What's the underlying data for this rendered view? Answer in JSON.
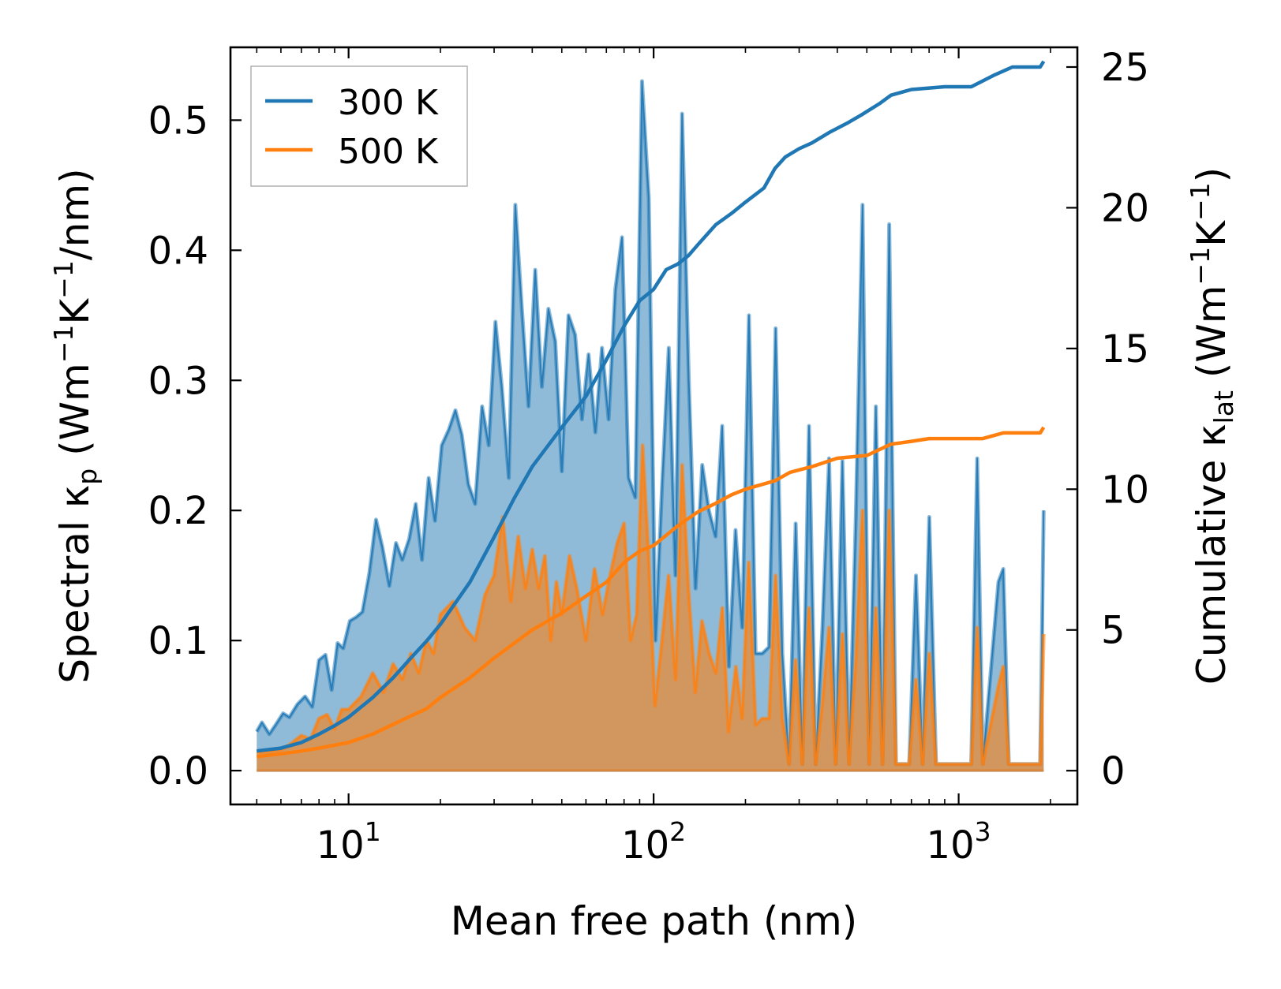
{
  "chart_data": {
    "type": "area",
    "xscale": "log",
    "xlabel": "Mean free path (nm)",
    "ylabel_left": {
      "main": "Spectral κ",
      "sub": "p",
      "unit_open": " (Wm",
      "sup1": "−1",
      "unit_mid": "K",
      "sup2": "−1",
      "unit_close": "/nm)"
    },
    "ylabel_right": {
      "main": "Cumulative κ",
      "sub": "lat",
      "unit_open": " (Wm",
      "sup1": "−1",
      "unit_mid": "K",
      "sup2": "−1",
      "unit_close": ")"
    },
    "xlim": [
      4.1,
      2450
    ],
    "ylim_left": [
      -0.026,
      0.556
    ],
    "ylim_right": [
      -1.2,
      25.7
    ],
    "x_ticks": [
      {
        "value": 10,
        "base": "10",
        "exp": "1"
      },
      {
        "value": 100,
        "base": "10",
        "exp": "2"
      },
      {
        "value": 1000,
        "base": "10",
        "exp": "3"
      }
    ],
    "y_left_ticks": [
      {
        "value": 0.0,
        "label": "0.0"
      },
      {
        "value": 0.1,
        "label": "0.1"
      },
      {
        "value": 0.2,
        "label": "0.2"
      },
      {
        "value": 0.3,
        "label": "0.3"
      },
      {
        "value": 0.4,
        "label": "0.4"
      },
      {
        "value": 0.5,
        "label": "0.5"
      }
    ],
    "y_right_ticks": [
      {
        "value": 0,
        "label": "0"
      },
      {
        "value": 5,
        "label": "5"
      },
      {
        "value": 10,
        "label": "10"
      },
      {
        "value": 15,
        "label": "15"
      },
      {
        "value": 20,
        "label": "20"
      },
      {
        "value": 25,
        "label": "25"
      }
    ],
    "legend": {
      "location": "top-left",
      "entries": [
        "300 K",
        "500 K"
      ]
    },
    "series": [
      {
        "name": "300 K",
        "color": "#1f77b4",
        "fill_color": "#1f77b4",
        "spectral": [
          [
            5.0,
            0.03
          ],
          [
            5.2,
            0.037
          ],
          [
            5.5,
            0.028
          ],
          [
            5.8,
            0.036
          ],
          [
            6.1,
            0.044
          ],
          [
            6.4,
            0.041
          ],
          [
            6.8,
            0.051
          ],
          [
            7.2,
            0.057
          ],
          [
            7.6,
            0.049
          ],
          [
            8.0,
            0.085
          ],
          [
            8.4,
            0.089
          ],
          [
            8.8,
            0.062
          ],
          [
            9.2,
            0.098
          ],
          [
            9.6,
            0.094
          ],
          [
            10.1,
            0.115
          ],
          [
            10.6,
            0.118
          ],
          [
            11.1,
            0.122
          ],
          [
            11.7,
            0.152
          ],
          [
            12.3,
            0.193
          ],
          [
            12.9,
            0.172
          ],
          [
            13.6,
            0.142
          ],
          [
            14.3,
            0.175
          ],
          [
            15.0,
            0.162
          ],
          [
            15.8,
            0.178
          ],
          [
            16.6,
            0.205
          ],
          [
            17.4,
            0.162
          ],
          [
            18.3,
            0.225
          ],
          [
            19.2,
            0.192
          ],
          [
            20.2,
            0.25
          ],
          [
            21.3,
            0.262
          ],
          [
            22.4,
            0.277
          ],
          [
            23.5,
            0.258
          ],
          [
            24.7,
            0.22
          ],
          [
            26.0,
            0.205
          ],
          [
            27.4,
            0.28
          ],
          [
            28.8,
            0.25
          ],
          [
            30.3,
            0.345
          ],
          [
            31.8,
            0.295
          ],
          [
            33.5,
            0.225
          ],
          [
            35.2,
            0.435
          ],
          [
            37.0,
            0.355
          ],
          [
            38.9,
            0.28
          ],
          [
            40.9,
            0.385
          ],
          [
            43.0,
            0.295
          ],
          [
            45.2,
            0.355
          ],
          [
            47.6,
            0.33
          ],
          [
            50.0,
            0.23
          ],
          [
            52.6,
            0.35
          ],
          [
            55.3,
            0.335
          ],
          [
            58.2,
            0.27
          ],
          [
            61.2,
            0.32
          ],
          [
            64.4,
            0.26
          ],
          [
            67.7,
            0.325
          ],
          [
            71.2,
            0.27
          ],
          [
            74.9,
            0.37
          ],
          [
            78.8,
            0.41
          ],
          [
            82.8,
            0.225
          ],
          [
            87.1,
            0.21
          ],
          [
            91.6,
            0.53
          ],
          [
            96.4,
            0.44
          ],
          [
            101.4,
            0.1
          ],
          [
            106.6,
            0.22
          ],
          [
            112.1,
            0.325
          ],
          [
            117.9,
            0.15
          ],
          [
            124.0,
            0.505
          ],
          [
            130.4,
            0.3
          ],
          [
            137.2,
            0.14
          ],
          [
            144.3,
            0.235
          ],
          [
            151.7,
            0.2
          ],
          [
            159.6,
            0.18
          ],
          [
            167.8,
            0.265
          ],
          [
            176.5,
            0.08
          ],
          [
            185.6,
            0.185
          ],
          [
            195.2,
            0.11
          ],
          [
            205.3,
            0.35
          ],
          [
            215.9,
            0.09
          ],
          [
            227.1,
            0.09
          ],
          [
            238.9,
            0.095
          ],
          [
            251.2,
            0.34
          ],
          [
            264.2,
            0.09
          ],
          [
            277.9,
            0.005
          ],
          [
            292.2,
            0.19
          ],
          [
            307.3,
            0.005
          ],
          [
            323.2,
            0.265
          ],
          [
            340.0,
            0.005
          ],
          [
            357.5,
            0.11
          ],
          [
            376.0,
            0.24
          ],
          [
            395.5,
            0.005
          ],
          [
            415.9,
            0.238
          ],
          [
            437.4,
            0.005
          ],
          [
            460.1,
            0.195
          ],
          [
            483.9,
            0.435
          ],
          [
            508.9,
            0.005
          ],
          [
            535.2,
            0.28
          ],
          [
            562.9,
            0.005
          ],
          [
            592.0,
            0.42
          ],
          [
            622.6,
            0.005
          ],
          [
            654.8,
            0.005
          ],
          [
            688.7,
            0.005
          ],
          [
            724.3,
            0.15
          ],
          [
            761.8,
            0.005
          ],
          [
            801.2,
            0.195
          ],
          [
            842.6,
            0.005
          ],
          [
            886.2,
            0.005
          ],
          [
            1100.0,
            0.005
          ],
          [
            1150.0,
            0.24
          ],
          [
            1200.0,
            0.005
          ],
          [
            1350.0,
            0.145
          ],
          [
            1400.0,
            0.155
          ],
          [
            1460.0,
            0.005
          ],
          [
            1850.0,
            0.005
          ],
          [
            1900.0,
            0.2
          ]
        ],
        "cumulative": [
          [
            5.0,
            0.7
          ],
          [
            6.0,
            0.8
          ],
          [
            7.0,
            1.0
          ],
          [
            8.0,
            1.3
          ],
          [
            9.0,
            1.6
          ],
          [
            10.0,
            1.9
          ],
          [
            12.0,
            2.6
          ],
          [
            14.0,
            3.3
          ],
          [
            16.0,
            4.0
          ],
          [
            18.0,
            4.6
          ],
          [
            20.0,
            5.2
          ],
          [
            25.0,
            6.7
          ],
          [
            30.0,
            8.3
          ],
          [
            35.0,
            9.7
          ],
          [
            40.0,
            10.8
          ],
          [
            50.0,
            12.2
          ],
          [
            60.0,
            13.3
          ],
          [
            70.0,
            14.6
          ],
          [
            80.0,
            15.8
          ],
          [
            90.0,
            16.7
          ],
          [
            100.0,
            17.1
          ],
          [
            110.0,
            17.8
          ],
          [
            120.0,
            18.0
          ],
          [
            130.0,
            18.3
          ],
          [
            140.0,
            18.7
          ],
          [
            160.0,
            19.4
          ],
          [
            180.0,
            19.8
          ],
          [
            200.0,
            20.2
          ],
          [
            230.0,
            20.7
          ],
          [
            250.0,
            21.4
          ],
          [
            270.0,
            21.8
          ],
          [
            300.0,
            22.1
          ],
          [
            330.0,
            22.3
          ],
          [
            380.0,
            22.7
          ],
          [
            430.0,
            23.0
          ],
          [
            480.0,
            23.3
          ],
          [
            550.0,
            23.7
          ],
          [
            600.0,
            24.0
          ],
          [
            700.0,
            24.2
          ],
          [
            900.0,
            24.3
          ],
          [
            1100.0,
            24.3
          ],
          [
            1300.0,
            24.7
          ],
          [
            1500.0,
            25.0
          ],
          [
            1850.0,
            25.0
          ],
          [
            1900.0,
            25.2
          ]
        ]
      },
      {
        "name": "500 K",
        "color": "#ff7f0e",
        "fill_color": "#ff7f0e",
        "spectral": [
          [
            5.0,
            0.014
          ],
          [
            5.5,
            0.015
          ],
          [
            6.0,
            0.016
          ],
          [
            6.5,
            0.021
          ],
          [
            7.0,
            0.027
          ],
          [
            7.5,
            0.024
          ],
          [
            8.0,
            0.04
          ],
          [
            8.5,
            0.043
          ],
          [
            9.0,
            0.032
          ],
          [
            9.5,
            0.047
          ],
          [
            10.0,
            0.047
          ],
          [
            11.0,
            0.057
          ],
          [
            12.0,
            0.075
          ],
          [
            13.0,
            0.06
          ],
          [
            14.0,
            0.082
          ],
          [
            15.0,
            0.07
          ],
          [
            16.0,
            0.09
          ],
          [
            17.0,
            0.075
          ],
          [
            18.0,
            0.1
          ],
          [
            19.0,
            0.09
          ],
          [
            20.0,
            0.12
          ],
          [
            22.0,
            0.13
          ],
          [
            24.0,
            0.11
          ],
          [
            26.0,
            0.1
          ],
          [
            28.0,
            0.135
          ],
          [
            30.0,
            0.15
          ],
          [
            32.0,
            0.195
          ],
          [
            34.0,
            0.13
          ],
          [
            36.0,
            0.18
          ],
          [
            38.0,
            0.14
          ],
          [
            40.0,
            0.17
          ],
          [
            42.0,
            0.14
          ],
          [
            44.0,
            0.165
          ],
          [
            46.0,
            0.1
          ],
          [
            48.0,
            0.145
          ],
          [
            50.0,
            0.12
          ],
          [
            53.0,
            0.165
          ],
          [
            56.0,
            0.14
          ],
          [
            60.0,
            0.1
          ],
          [
            64.0,
            0.155
          ],
          [
            68.0,
            0.12
          ],
          [
            72.0,
            0.15
          ],
          [
            76.0,
            0.175
          ],
          [
            80.0,
            0.19
          ],
          [
            84.0,
            0.1
          ],
          [
            88.0,
            0.12
          ],
          [
            92.0,
            0.25
          ],
          [
            96.0,
            0.17
          ],
          [
            101.0,
            0.05
          ],
          [
            106.0,
            0.095
          ],
          [
            112.0,
            0.15
          ],
          [
            118.0,
            0.07
          ],
          [
            124.0,
            0.235
          ],
          [
            130.0,
            0.14
          ],
          [
            137.0,
            0.06
          ],
          [
            144.0,
            0.115
          ],
          [
            152.0,
            0.09
          ],
          [
            160.0,
            0.075
          ],
          [
            168.0,
            0.125
          ],
          [
            176.0,
            0.03
          ],
          [
            186.0,
            0.08
          ],
          [
            195.0,
            0.04
          ],
          [
            205.0,
            0.16
          ],
          [
            216.0,
            0.035
          ],
          [
            227.0,
            0.04
          ],
          [
            239.0,
            0.04
          ],
          [
            251.0,
            0.15
          ],
          [
            264.0,
            0.04
          ],
          [
            278.0,
            0.005
          ],
          [
            292.0,
            0.085
          ],
          [
            307.0,
            0.005
          ],
          [
            323.0,
            0.125
          ],
          [
            340.0,
            0.005
          ],
          [
            357.0,
            0.05
          ],
          [
            376.0,
            0.11
          ],
          [
            395.0,
            0.005
          ],
          [
            416.0,
            0.105
          ],
          [
            437.0,
            0.005
          ],
          [
            460.0,
            0.085
          ],
          [
            484.0,
            0.2
          ],
          [
            509.0,
            0.005
          ],
          [
            535.0,
            0.125
          ],
          [
            563.0,
            0.005
          ],
          [
            592.0,
            0.2
          ],
          [
            623.0,
            0.005
          ],
          [
            688.0,
            0.005
          ],
          [
            724.0,
            0.07
          ],
          [
            762.0,
            0.005
          ],
          [
            801.0,
            0.09
          ],
          [
            843.0,
            0.005
          ],
          [
            1100.0,
            0.005
          ],
          [
            1150.0,
            0.11
          ],
          [
            1200.0,
            0.005
          ],
          [
            1350.0,
            0.065
          ],
          [
            1400.0,
            0.08
          ],
          [
            1460.0,
            0.005
          ],
          [
            1850.0,
            0.005
          ],
          [
            1900.0,
            0.105
          ]
        ],
        "cumulative": [
          [
            5.0,
            0.5
          ],
          [
            6.0,
            0.6
          ],
          [
            7.0,
            0.7
          ],
          [
            8.0,
            0.8
          ],
          [
            10.0,
            1.0
          ],
          [
            12.0,
            1.3
          ],
          [
            15.0,
            1.8
          ],
          [
            18.0,
            2.2
          ],
          [
            20.0,
            2.6
          ],
          [
            25.0,
            3.3
          ],
          [
            30.0,
            4.0
          ],
          [
            40.0,
            5.0
          ],
          [
            50.0,
            5.6
          ],
          [
            60.0,
            6.2
          ],
          [
            70.0,
            6.7
          ],
          [
            80.0,
            7.4
          ],
          [
            90.0,
            7.8
          ],
          [
            100.0,
            8.0
          ],
          [
            120.0,
            8.7
          ],
          [
            140.0,
            9.2
          ],
          [
            160.0,
            9.5
          ],
          [
            180.0,
            9.8
          ],
          [
            200.0,
            10.0
          ],
          [
            250.0,
            10.3
          ],
          [
            280.0,
            10.6
          ],
          [
            330.0,
            10.8
          ],
          [
            400.0,
            11.1
          ],
          [
            500.0,
            11.2
          ],
          [
            600.0,
            11.6
          ],
          [
            700.0,
            11.7
          ],
          [
            800.0,
            11.8
          ],
          [
            1000.0,
            11.8
          ],
          [
            1200.0,
            11.8
          ],
          [
            1400.0,
            12.0
          ],
          [
            1850.0,
            12.0
          ],
          [
            1900.0,
            12.2
          ]
        ]
      }
    ]
  }
}
